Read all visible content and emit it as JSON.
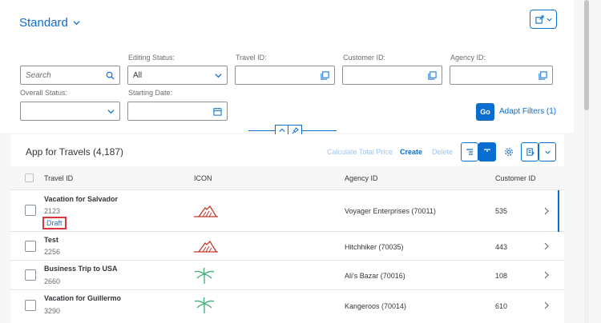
{
  "variant": {
    "label": "Standard"
  },
  "filters": {
    "search": {
      "placeholder": "Search"
    },
    "editing_status": {
      "label": "Editing Status:",
      "value": "All"
    },
    "travel_id": {
      "label": "Travel ID:"
    },
    "customer_id": {
      "label": "Customer ID:"
    },
    "agency_id": {
      "label": "Agency ID:"
    },
    "overall_status": {
      "label": "Overall Status:"
    },
    "starting_date": {
      "label": "Starting Date:"
    },
    "go_label": "Go",
    "adapt_label": "Adapt Filters (1)"
  },
  "table": {
    "title": "App for Travels (4,187)",
    "toolbar": {
      "calculate": "Calculate Total Price",
      "create": "Create",
      "delete": "Delete"
    },
    "columns": [
      "Travel ID",
      "ICON",
      "Agency ID",
      "Customer ID"
    ],
    "rows": [
      {
        "title": "Vacation for Salvador",
        "id": "2123",
        "status": "Draft",
        "agency": "Voyager Enterprises (70011)",
        "customer": "535",
        "icon": "mountain-icon"
      },
      {
        "title": "Test",
        "id": "2256",
        "agency": "Hitchhiker (70035)",
        "customer": "443",
        "icon": "mountain-icon"
      },
      {
        "title": "Business Trip to USA",
        "id": "2660",
        "agency": "Ali's Bazar (70016)",
        "customer": "108",
        "icon": "palm-tree-icon"
      },
      {
        "title": "Vacation for Guillermo",
        "id": "3290",
        "agency": "Kangeroos (70014)",
        "customer": "610",
        "icon": "palm-tree-icon"
      }
    ]
  },
  "colors": {
    "accent": "#0a6ed1",
    "draft_highlight": "#d9363e",
    "mountain": "#c0392b",
    "palm": "#3fae7a"
  }
}
